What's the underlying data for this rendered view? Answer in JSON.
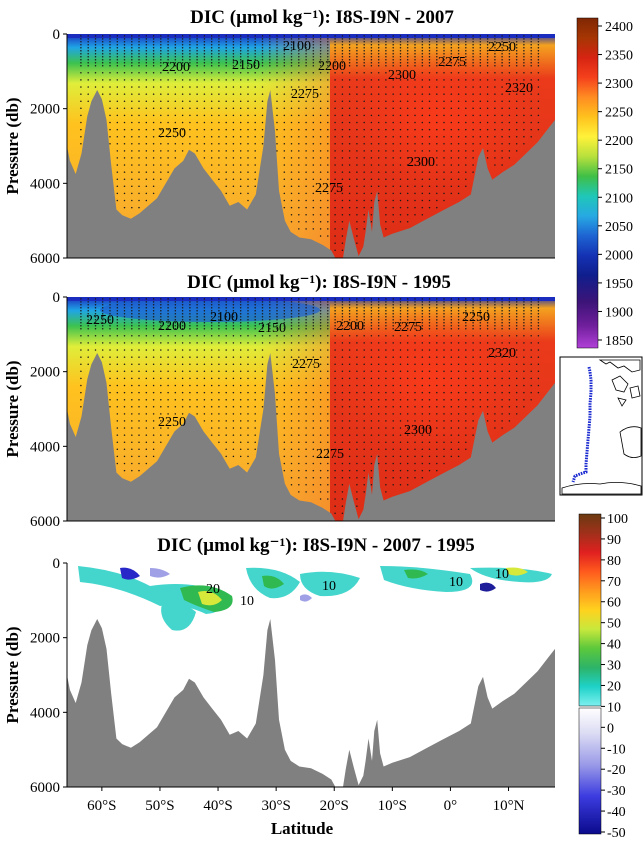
{
  "chart_data": [
    {
      "type": "heatmap",
      "id": "top",
      "title": "DIC (µmol kg⁻¹): I8S-I9N - 2007",
      "ylabel": "Pressure (db)",
      "xlim": [
        -66,
        18
      ],
      "ylim": [
        6000,
        0
      ],
      "yticks": [
        "0",
        "2000",
        "4000",
        "6000"
      ],
      "contour_labels": [
        "2100",
        "2250",
        "2200",
        "2150",
        "2200",
        "2300",
        "2275",
        "2320",
        "2250",
        "2275",
        "2300",
        "2275"
      ]
    },
    {
      "type": "heatmap",
      "id": "mid",
      "title": "DIC (µmol kg⁻¹): I8S-I9N - 1995",
      "ylabel": "Pressure (db)",
      "xlim": [
        -66,
        18
      ],
      "ylim": [
        6000,
        0
      ],
      "yticks": [
        "0",
        "2000",
        "4000",
        "6000"
      ],
      "contour_labels": [
        "2250",
        "2200",
        "2100",
        "2150",
        "2200",
        "2275",
        "2250",
        "2275",
        "2320",
        "2250",
        "2300",
        "2275"
      ]
    },
    {
      "type": "heatmap",
      "id": "bot",
      "title": "DIC (µmol kg⁻¹): I8S-I9N - 2007 - 1995",
      "ylabel": "Pressure (db)",
      "xlabel": "Latitude",
      "xlim": [
        -66,
        18
      ],
      "ylim": [
        6000,
        0
      ],
      "yticks": [
        "0",
        "2000",
        "4000",
        "6000"
      ],
      "xticks": [
        "60°S",
        "50°S",
        "40°S",
        "30°S",
        "20°S",
        "10°S",
        "0°",
        "10°N"
      ],
      "contour_labels": [
        "20",
        "10",
        "10",
        "10",
        "10"
      ]
    }
  ],
  "colorbar_dic": {
    "ticks": [
      "2400",
      "2350",
      "2300",
      "2250",
      "2200",
      "2150",
      "2100",
      "2050",
      "2000",
      "1950",
      "1900",
      "1850"
    ]
  },
  "colorbar_diff": {
    "ticks": [
      "100",
      "90",
      "80",
      "70",
      "60",
      "50",
      "40",
      "30",
      "20",
      "10",
      "0",
      "-10",
      "-20",
      "-30",
      "-40",
      "-50"
    ]
  },
  "colors": {
    "seafloor": "#808080",
    "dic_scale": [
      "#7f2704",
      "#a63603",
      "#cc2200",
      "#e8321b",
      "#ff6a1a",
      "#ff9a28",
      "#ffc21e",
      "#fff23a",
      "#c8e63c",
      "#4fc23e",
      "#1fc7b0",
      "#27a9e3",
      "#1e64d2",
      "#1432b4",
      "#101e8c",
      "#3c1478",
      "#6e1e9a",
      "#a035c8"
    ],
    "diff_scale": [
      "#6b3a10",
      "#8b4513",
      "#b2221d",
      "#e02020",
      "#ff5a1e",
      "#ff9a1e",
      "#ffd21e",
      "#e8f03c",
      "#7cd23c",
      "#2db442",
      "#1ed2c8",
      "#7ef0f0",
      "#ffffff",
      "#e0e0f4",
      "#a0a0e8",
      "#3c3ce0",
      "#0a0aa0"
    ]
  }
}
